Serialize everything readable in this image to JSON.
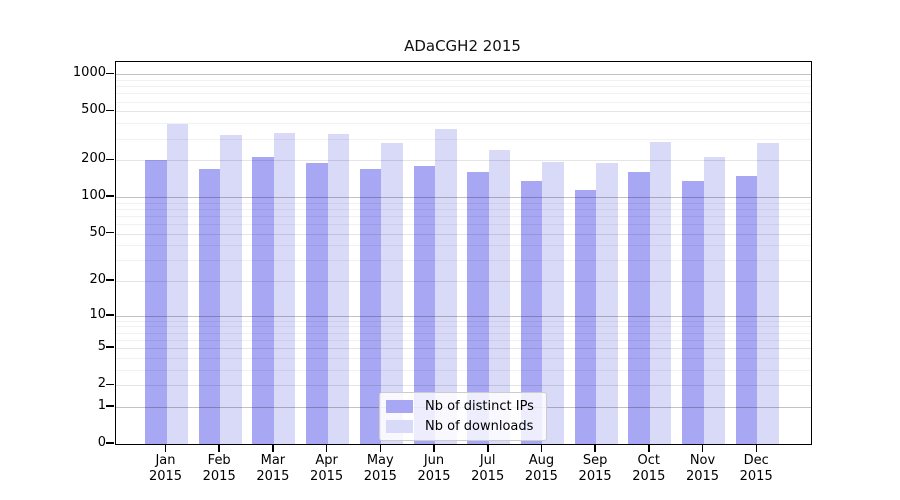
{
  "chart_data": {
    "type": "bar",
    "title": "ADaCGH2 2015",
    "categories": [
      "Jan",
      "Feb",
      "Mar",
      "Apr",
      "May",
      "Jun",
      "Jul",
      "Aug",
      "Sep",
      "Oct",
      "Nov",
      "Dec"
    ],
    "category_year": "2015",
    "series": [
      {
        "name": "Nb of distinct IPs",
        "color": "#a7a7f3",
        "values": [
          200,
          170,
          214,
          190,
          170,
          178,
          160,
          136,
          114,
          162,
          136,
          150
        ]
      },
      {
        "name": "Nb of downloads",
        "color": "#d9d9f8",
        "values": [
          392,
          319,
          334,
          327,
          276,
          359,
          241,
          192,
          189,
          282,
          214,
          277
        ]
      }
    ],
    "yscale": "log10(1+x)",
    "yticks": [
      0,
      1,
      2,
      5,
      10,
      20,
      50,
      100,
      200,
      500,
      1000
    ],
    "minor_gridlines": [
      3,
      4,
      6,
      7,
      8,
      9,
      30,
      40,
      60,
      70,
      80,
      90,
      300,
      400,
      600,
      700,
      800,
      900
    ],
    "ylim": [
      0,
      1300
    ],
    "grid": true,
    "legend_position": "inside-bottom-center"
  }
}
